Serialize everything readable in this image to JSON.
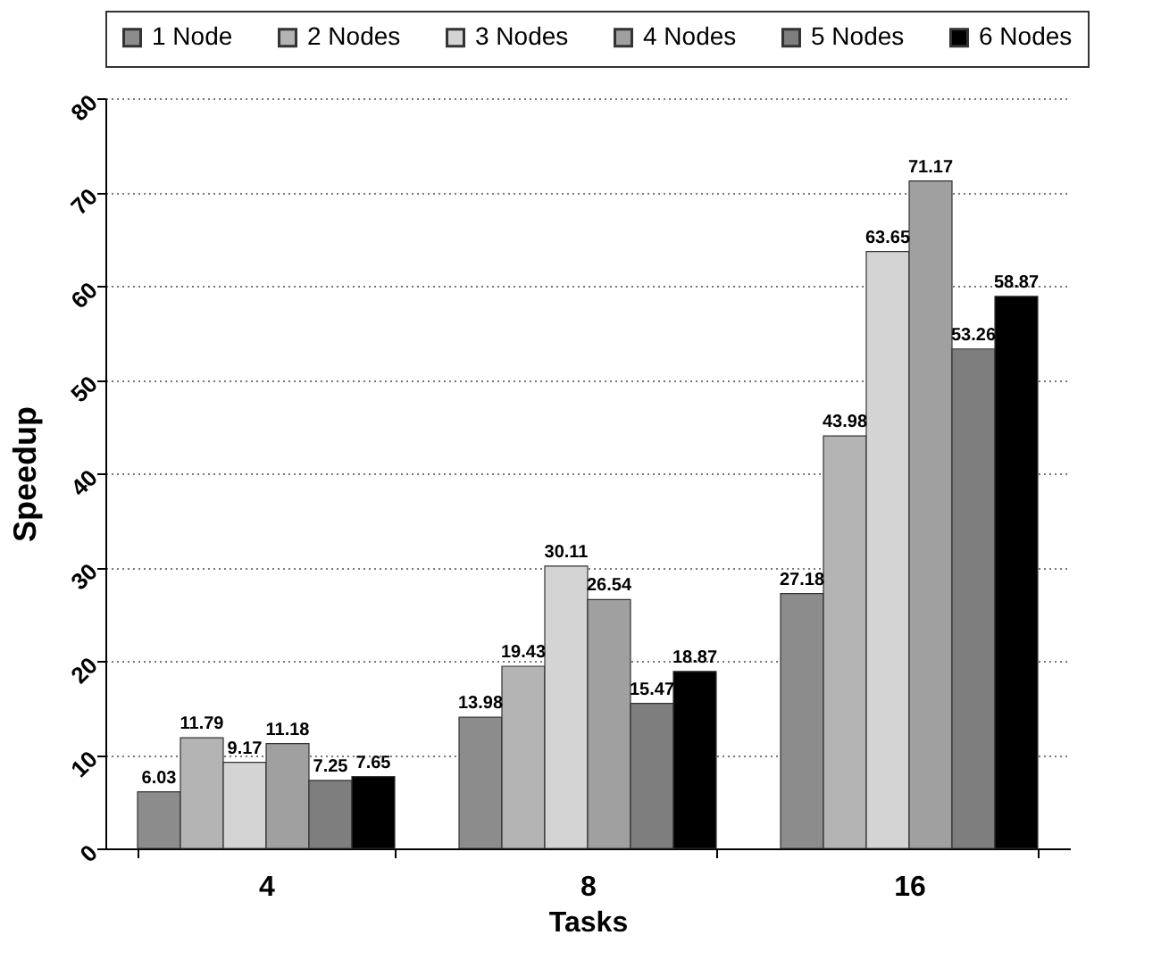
{
  "chart_data": {
    "type": "bar",
    "xlabel": "Tasks",
    "ylabel": "Speedup",
    "categories": [
      "4",
      "8",
      "16"
    ],
    "series": [
      {
        "name": "1 Node",
        "color": "#8c8c8c",
        "values": [
          6.03,
          13.98,
          27.18
        ]
      },
      {
        "name": "2 Nodes",
        "color": "#b4b4b4",
        "values": [
          11.79,
          19.43,
          43.98
        ]
      },
      {
        "name": "3 Nodes",
        "color": "#d4d4d4",
        "values": [
          9.17,
          30.11,
          63.65
        ]
      },
      {
        "name": "4 Nodes",
        "color": "#a0a0a0",
        "values": [
          11.18,
          26.54,
          71.17
        ]
      },
      {
        "name": "5 Nodes",
        "color": "#7e7e7e",
        "values": [
          7.25,
          15.47,
          53.26
        ]
      },
      {
        "name": "6 Nodes",
        "color": "#000000",
        "values": [
          7.65,
          18.87,
          58.87
        ]
      }
    ],
    "ylim": [
      0,
      80
    ],
    "yticks": [
      0,
      10,
      20,
      30,
      40,
      50,
      60,
      70,
      80
    ],
    "grid": "y",
    "legend": "top",
    "data_labels": true
  }
}
